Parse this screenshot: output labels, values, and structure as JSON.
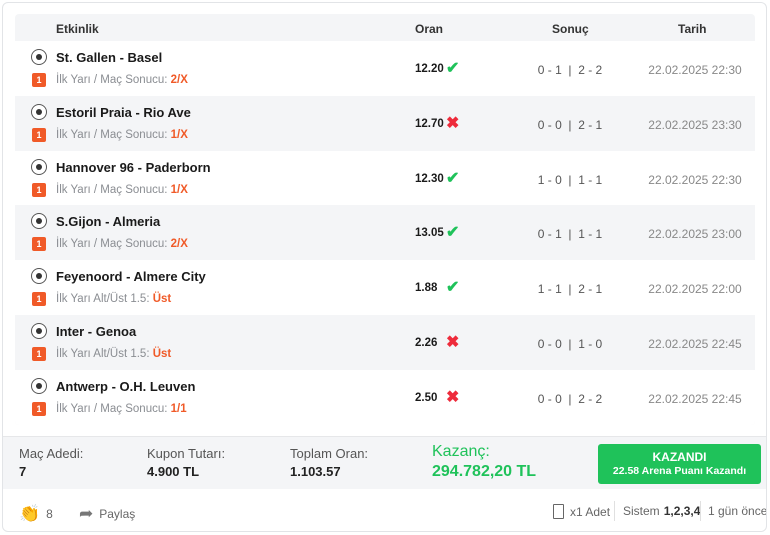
{
  "table": {
    "headers": {
      "event": "Etkinlik",
      "odds": "Oran",
      "result": "Sonuç",
      "date": "Tarih"
    },
    "rows": [
      {
        "match": "St. Gallen - Basel",
        "badge": "1",
        "market": "İlk Yarı / Maç Sonucu:",
        "pick": "2/X",
        "odds": "12.20",
        "status": "won",
        "score": "0 - 1  |  2 - 2",
        "date": "22.02.2025 22:30"
      },
      {
        "match": "Estoril Praia - Rio Ave",
        "badge": "1",
        "market": "İlk Yarı / Maç Sonucu:",
        "pick": "1/X",
        "odds": "12.70",
        "status": "lost",
        "score": "0 - 0  |  2 - 1",
        "date": "22.02.2025 23:30"
      },
      {
        "match": "Hannover 96 - Paderborn",
        "badge": "1",
        "market": "İlk Yarı / Maç Sonucu:",
        "pick": "1/X",
        "odds": "12.30",
        "status": "won",
        "score": "1 - 0  |  1 - 1",
        "date": "22.02.2025 22:30"
      },
      {
        "match": "S.Gijon - Almeria",
        "badge": "1",
        "market": "İlk Yarı / Maç Sonucu:",
        "pick": "2/X",
        "odds": "13.05",
        "status": "won",
        "score": "0 - 1  |  1 - 1",
        "date": "22.02.2025 23:00"
      },
      {
        "match": "Feyenoord - Almere City",
        "badge": "1",
        "market": "İlk Yarı Alt/Üst 1.5:",
        "pick": "Üst",
        "odds": "1.88",
        "status": "won",
        "score": "1 - 1  |  2 - 1",
        "date": "22.02.2025 22:00"
      },
      {
        "match": "Inter - Genoa",
        "badge": "1",
        "market": "İlk Yarı Alt/Üst 1.5:",
        "pick": "Üst",
        "odds": "2.26",
        "status": "lost",
        "score": "0 - 0  |  1 - 0",
        "date": "22.02.2025 22:45"
      },
      {
        "match": "Antwerp - O.H. Leuven",
        "badge": "1",
        "market": "İlk Yarı / Maç Sonucu:",
        "pick": "1/1",
        "odds": "2.50",
        "status": "lost",
        "score": "0 - 0  |  2 - 2",
        "date": "22.02.2025 22:45"
      }
    ]
  },
  "summary": {
    "match_count_label": "Maç Adedi:",
    "match_count": "7",
    "stake_label": "Kupon Tutarı:",
    "stake": "4.900 TL",
    "total_odds_label": "Toplam Oran:",
    "total_odds": "1.103.57",
    "winnings_label": "Kazanç:",
    "winnings": "294.782,20 TL",
    "status_title": "KAZANDI",
    "status_sub": "22.58 Arena Puanı Kazandı"
  },
  "footer": {
    "claps": "8",
    "share": "Paylaş",
    "copies": "x1 Adet",
    "system_label": "Sistem",
    "system": "1,2,3,4",
    "time_ago": "1 gün önce"
  },
  "colors": {
    "accent": "#f05a28",
    "win": "#1fc25a",
    "loss": "#ee2b3b"
  }
}
